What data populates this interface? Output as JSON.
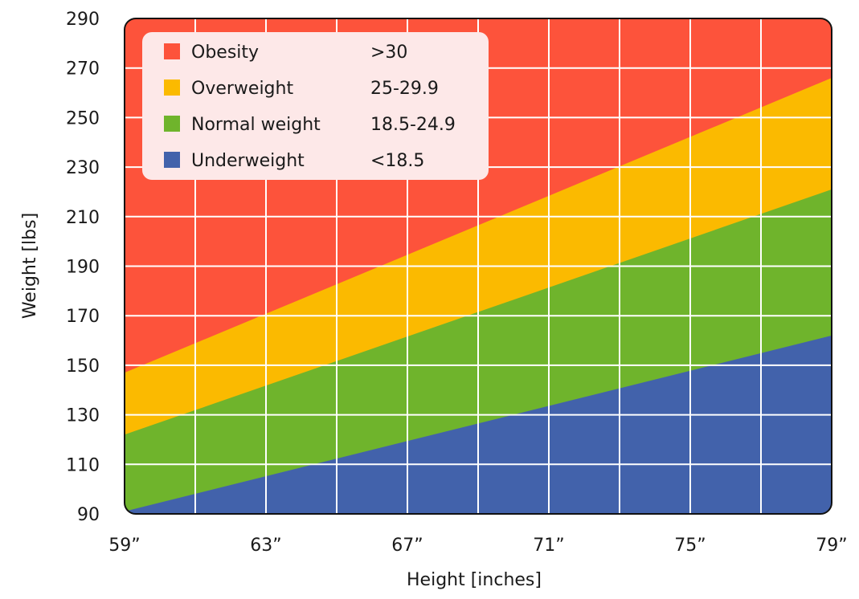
{
  "chart_data": {
    "type": "area",
    "title": "",
    "xlabel": "Height [inches]",
    "ylabel": "Weight [lbs]",
    "xlim": [
      59,
      79
    ],
    "ylim": [
      90,
      290
    ],
    "x_ticks": [
      59,
      63,
      67,
      71,
      75,
      79
    ],
    "x_tick_labels": [
      "59”",
      "63”",
      "67”",
      "71”",
      "75”",
      "79”"
    ],
    "x_grid_step": 2,
    "y_ticks": [
      90,
      110,
      130,
      150,
      170,
      190,
      210,
      230,
      250,
      270,
      290
    ],
    "y_tick_labels": [
      "90",
      "110",
      "130",
      "150",
      "170",
      "190",
      "210",
      "230",
      "250",
      "270",
      "290"
    ],
    "grid": true,
    "legend_position": "top-left",
    "x": [
      59,
      79
    ],
    "boundaries": [
      {
        "name": "Underweight / Normal weight",
        "values": [
          91,
          162
        ]
      },
      {
        "name": "Normal weight / Overweight",
        "values": [
          122,
          221
        ]
      },
      {
        "name": "Overweight / Obesity",
        "values": [
          147,
          266
        ]
      }
    ],
    "series": [
      {
        "name": "Obesity",
        "range": ">30",
        "color": "#fd533b"
      },
      {
        "name": "Overweight",
        "range": "25-29.9",
        "color": "#fbba00"
      },
      {
        "name": "Normal weight",
        "range": "18.5-24.9",
        "color": "#6fb42c"
      },
      {
        "name": "Underweight",
        "range": "<18.5",
        "color": "#4262ab"
      }
    ],
    "grid_color": "#ffffff",
    "legend_background": "#fde8e8"
  }
}
